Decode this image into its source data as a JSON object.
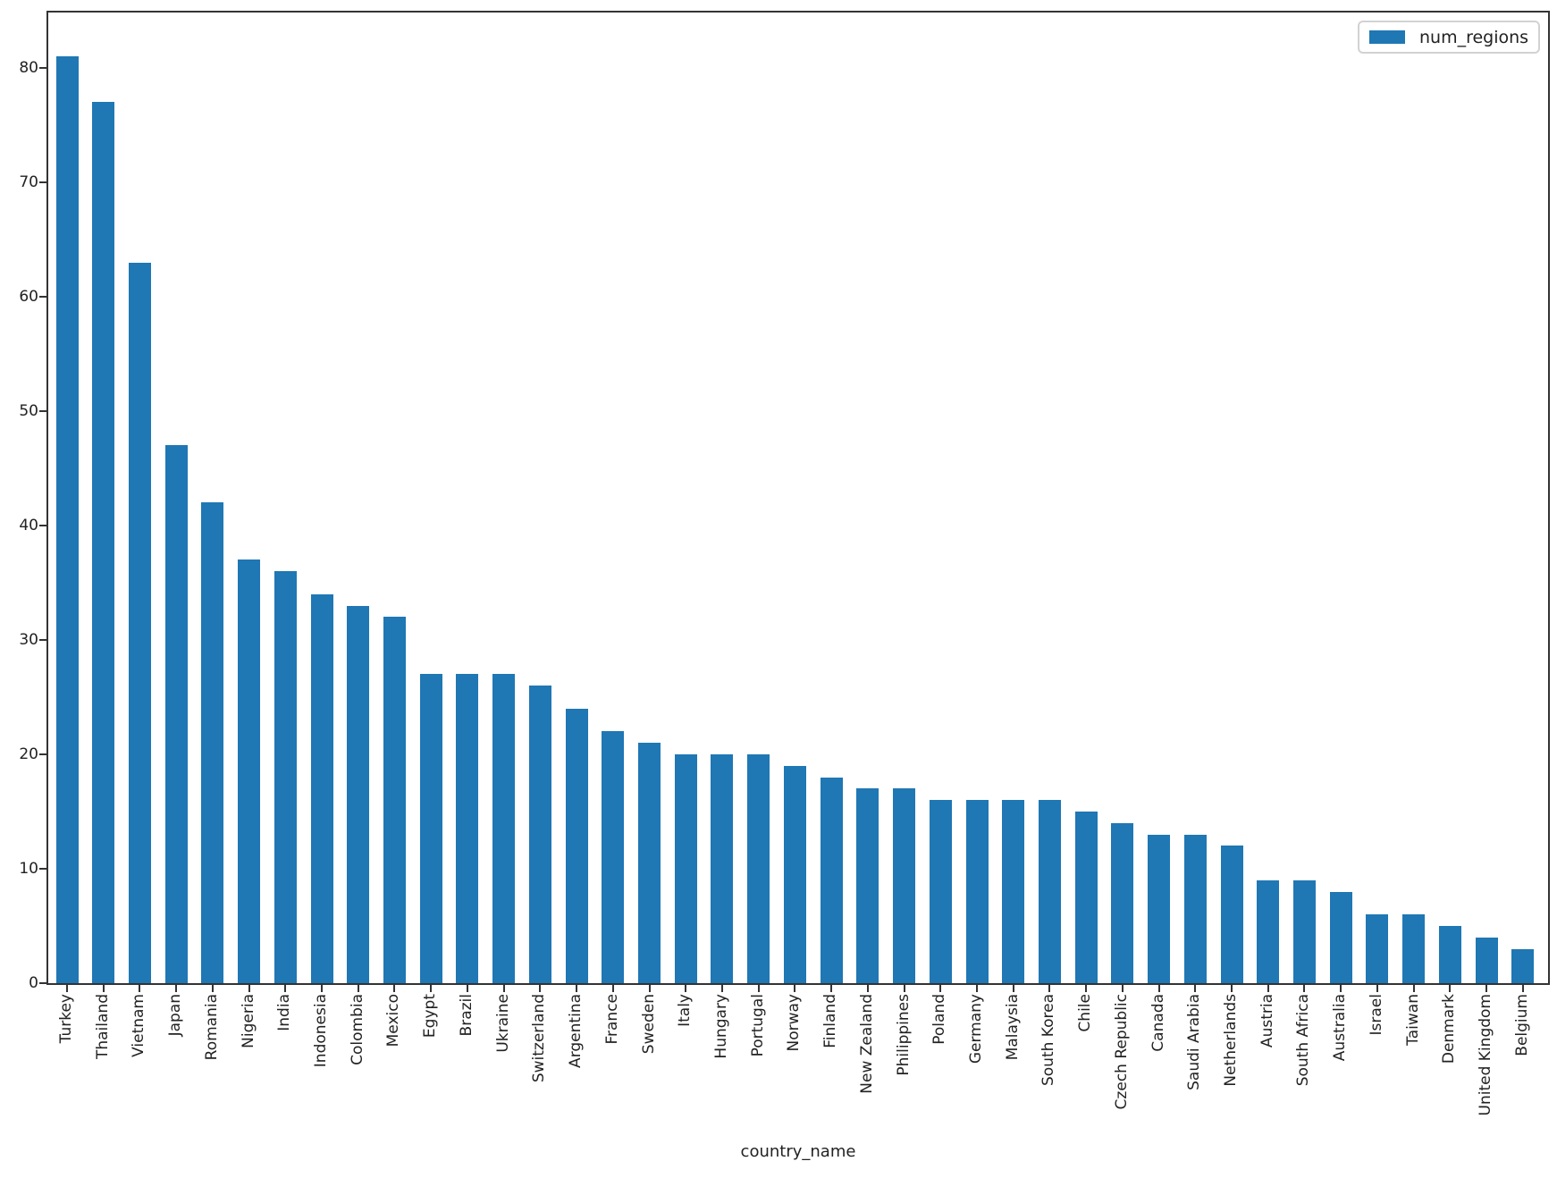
{
  "legend": {
    "label": "num_regions"
  },
  "axes": {
    "x_title": "country_name"
  },
  "chart_data": {
    "type": "bar",
    "title": "",
    "xlabel": "country_name",
    "ylabel": "",
    "series_name": "num_regions",
    "bar_color": "#1f77b4",
    "legend_position": "upper right",
    "grid": false,
    "ylim": [
      0,
      85
    ],
    "yticks": [
      0,
      10,
      20,
      30,
      40,
      50,
      60,
      70,
      80
    ],
    "categories": [
      "Turkey",
      "Thailand",
      "Vietnam",
      "Japan",
      "Romania",
      "Nigeria",
      "India",
      "Indonesia",
      "Colombia",
      "Mexico",
      "Egypt",
      "Brazil",
      "Ukraine",
      "Switzerland",
      "Argentina",
      "France",
      "Sweden",
      "Italy",
      "Hungary",
      "Portugal",
      "Norway",
      "Finland",
      "New Zealand",
      "Philippines",
      "Poland",
      "Germany",
      "Malaysia",
      "South Korea",
      "Chile",
      "Czech Republic",
      "Canada",
      "Saudi Arabia",
      "Netherlands",
      "Austria",
      "South Africa",
      "Australia",
      "Israel",
      "Taiwan",
      "Denmark",
      "United Kingdom",
      "Belgium"
    ],
    "values": [
      81,
      77,
      63,
      47,
      42,
      37,
      36,
      34,
      33,
      32,
      27,
      27,
      27,
      26,
      24,
      22,
      21,
      20,
      20,
      20,
      19,
      18,
      17,
      17,
      16,
      16,
      16,
      16,
      15,
      14,
      13,
      13,
      12,
      9,
      9,
      8,
      6,
      6,
      5,
      4,
      3
    ]
  }
}
